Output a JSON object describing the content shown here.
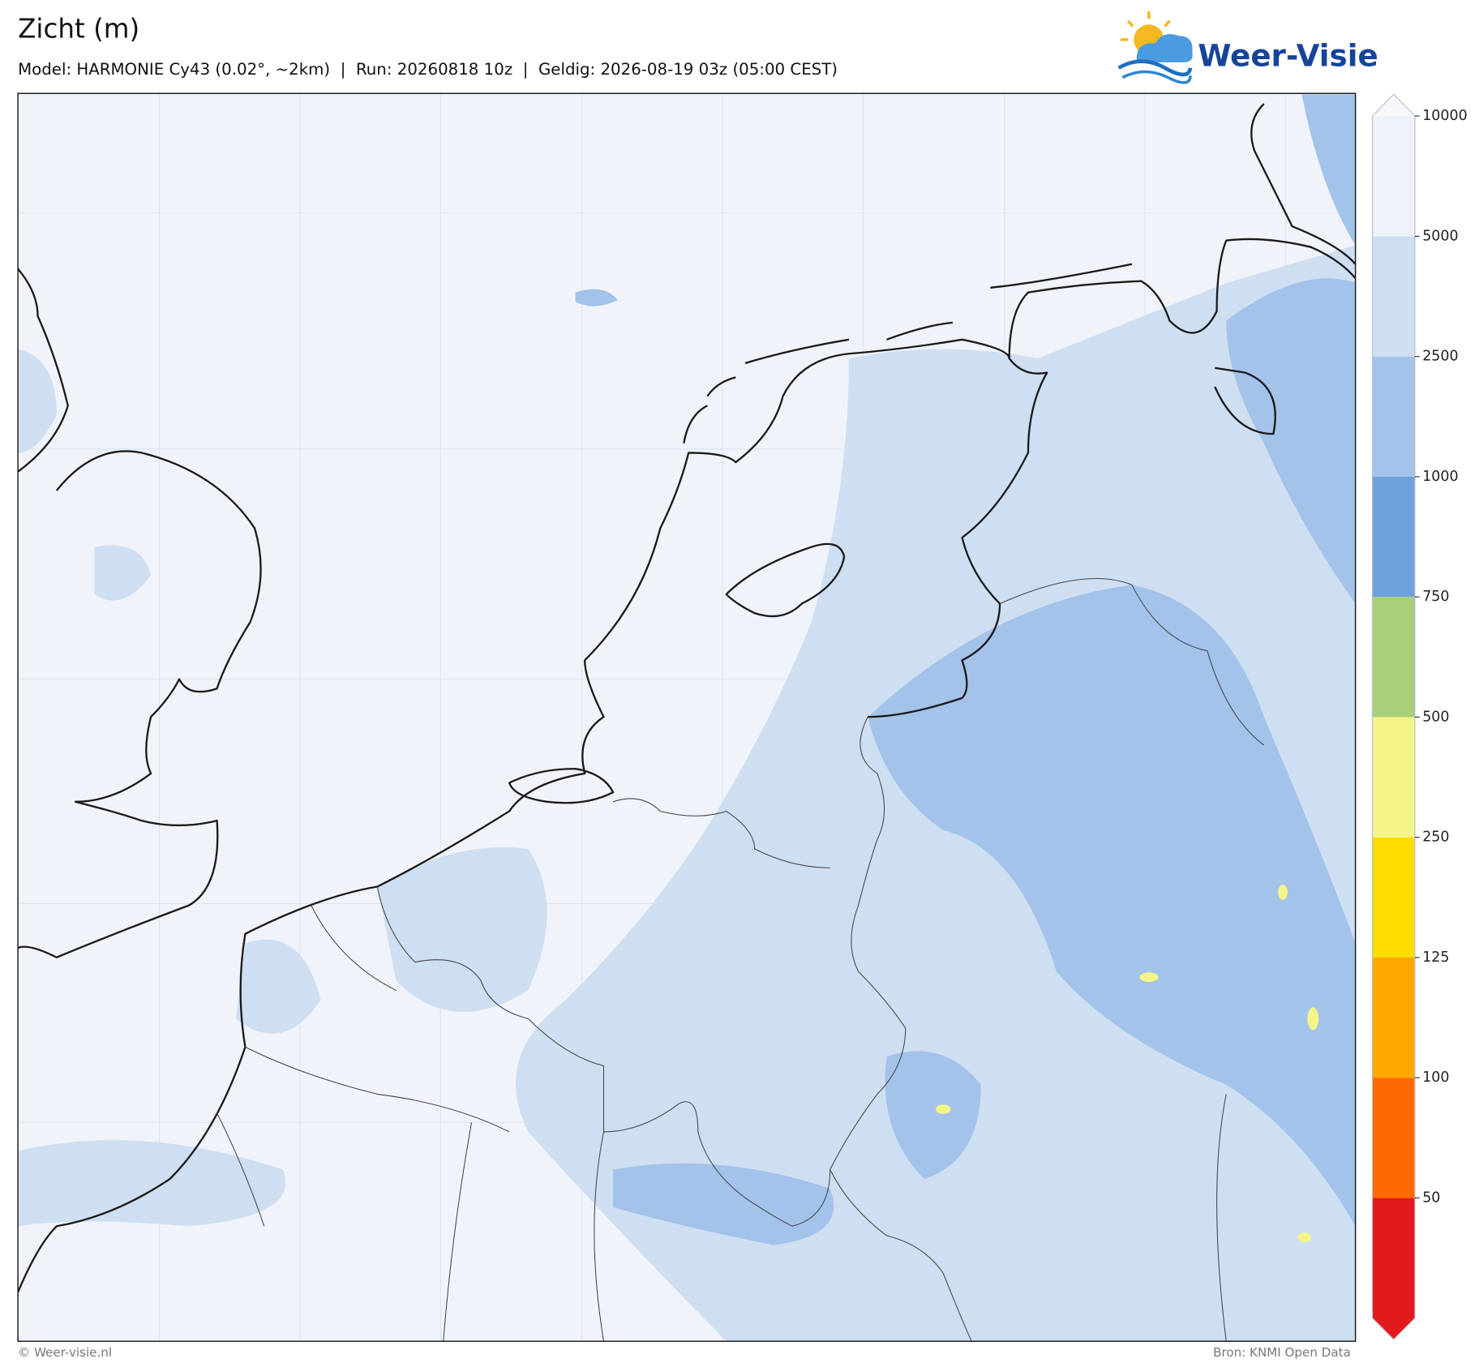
{
  "header": {
    "title": "Zicht (m)",
    "subtitle": "Model: HARMONIE Cy43 (0.02°, ~2km)  |  Run: 20260818 10z  |  Geldig: 2026-08-19 03z (05:00 CEST)",
    "logo": "Weer-Visie"
  },
  "colorbar": {
    "levels": [
      50,
      100,
      125,
      250,
      500,
      750,
      1000,
      2500,
      5000,
      10000
    ],
    "colors": [
      "#e31a1c",
      "#ff6a00",
      "#ffa800",
      "#ffdd00",
      "#f5f587",
      "#a8cf7a",
      "#6fa2dc",
      "#a3c3ea",
      "#cfdff2",
      "#eef3fa",
      "#f6f8fc"
    ]
  },
  "footer": {
    "left": "© Weer-visie.nl",
    "right": "Bron: KNMI Open Data"
  }
}
